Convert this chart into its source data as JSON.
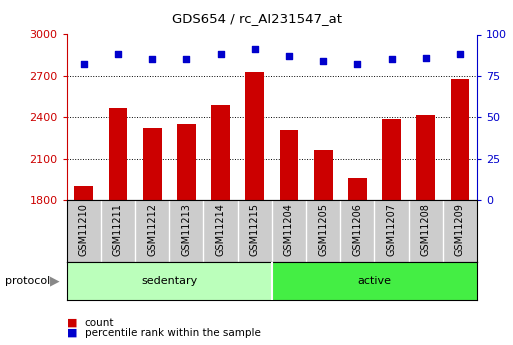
{
  "title": "GDS654 / rc_AI231547_at",
  "samples": [
    "GSM11210",
    "GSM11211",
    "GSM11212",
    "GSM11213",
    "GSM11214",
    "GSM11215",
    "GSM11204",
    "GSM11205",
    "GSM11206",
    "GSM11207",
    "GSM11208",
    "GSM11209"
  ],
  "counts": [
    1900,
    2470,
    2320,
    2350,
    2490,
    2730,
    2310,
    2160,
    1960,
    2390,
    2420,
    2680
  ],
  "percentile_ranks": [
    82,
    88,
    85,
    85,
    88,
    91,
    87,
    84,
    82,
    85,
    86,
    88
  ],
  "groups": [
    {
      "label": "sedentary",
      "start": 0,
      "end": 6,
      "color": "#bbffbb"
    },
    {
      "label": "active",
      "start": 6,
      "end": 12,
      "color": "#44ee44"
    }
  ],
  "ylim_left": [
    1800,
    3000
  ],
  "ylim_right": [
    0,
    100
  ],
  "yticks_left": [
    1800,
    2100,
    2400,
    2700,
    3000
  ],
  "yticks_right": [
    0,
    25,
    50,
    75,
    100
  ],
  "bar_color": "#cc0000",
  "dot_color": "#0000cc",
  "bar_width": 0.55,
  "grid_color": "black",
  "background_color": "#ffffff",
  "plot_bg_color": "#ffffff",
  "xtick_bg_color": "#cccccc",
  "legend_items": [
    {
      "label": "count",
      "color": "#cc0000"
    },
    {
      "label": "percentile rank within the sample",
      "color": "#0000cc"
    }
  ],
  "figsize": [
    5.13,
    3.45
  ],
  "dpi": 100
}
